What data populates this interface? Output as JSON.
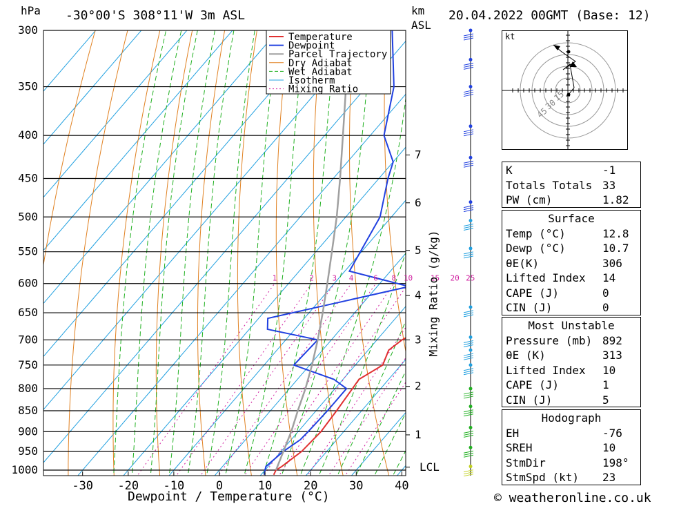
{
  "header": {
    "pressure_unit": "hPa",
    "location": "-30°00'S  308°11'W  3m  ASL",
    "height_unit_km": "km",
    "height_unit_asl": "ASL",
    "datetime": "20.04.2022  00GMT  (Base: 12)"
  },
  "hodograph": {
    "unit": "kt",
    "ring_labels": [
      "15",
      "30",
      "45"
    ]
  },
  "indices": [
    {
      "label": "K",
      "value": "-1"
    },
    {
      "label": "Totals Totals",
      "value": "33"
    },
    {
      "label": "PW (cm)",
      "value": "1.82"
    }
  ],
  "surface": {
    "title": "Surface",
    "rows": [
      {
        "label": "Temp (°C)",
        "value": "12.8"
      },
      {
        "label": "Dewp (°C)",
        "value": "10.7"
      },
      {
        "label": "θE(K)",
        "value": "306"
      },
      {
        "label": "Lifted Index",
        "value": "14"
      },
      {
        "label": "CAPE (J)",
        "value": "0"
      },
      {
        "label": "CIN (J)",
        "value": "0"
      }
    ]
  },
  "most_unstable": {
    "title": "Most Unstable",
    "rows": [
      {
        "label": "Pressure (mb)",
        "value": "892"
      },
      {
        "label": "θE (K)",
        "value": "313"
      },
      {
        "label": "Lifted Index",
        "value": "10"
      },
      {
        "label": "CAPE (J)",
        "value": "1"
      },
      {
        "label": "CIN (J)",
        "value": "5"
      }
    ]
  },
  "hodograph_params": {
    "title": "Hodograph",
    "rows": [
      {
        "label": "EH",
        "value": "-76"
      },
      {
        "label": "SREH",
        "value": "10"
      },
      {
        "label": "StmDir",
        "value": "198°"
      },
      {
        "label": "StmSpd (kt)",
        "value": "23"
      }
    ]
  },
  "footer": "© weatheronline.co.uk",
  "chart_data": {
    "type": "line",
    "subtype": "skew-t log-p",
    "xlabel": "Dewpoint / Temperature (°C)",
    "ylabel": "hPa",
    "right_axis_label": "Mixing Ratio (g/kg)",
    "x_ticks": [
      -30,
      -20,
      -10,
      0,
      10,
      20,
      30,
      40
    ],
    "pressure_levels": [
      300,
      350,
      400,
      450,
      500,
      550,
      600,
      650,
      700,
      750,
      800,
      850,
      900,
      950,
      1000
    ],
    "height_km_ticks": [
      {
        "km": "1",
        "p": 908
      },
      {
        "km": "2",
        "p": 795
      },
      {
        "km": "3",
        "p": 700
      },
      {
        "km": "4",
        "p": 620
      },
      {
        "km": "5",
        "p": 548
      },
      {
        "km": "6",
        "p": 481
      },
      {
        "km": "7",
        "p": 422
      }
    ],
    "lcl": {
      "label": "LCL",
      "p": 992
    },
    "mixing_ratio_labels": [
      "1",
      "2",
      "3",
      "4",
      "6",
      "8",
      "10",
      "15",
      "20",
      "25"
    ],
    "legend": [
      "Temperature",
      "Dewpoint",
      "Parcel Trajectory",
      "Dry Adiabat",
      "Wet Adiabat",
      "Isotherm",
      "Mixing Ratio"
    ],
    "colors": {
      "temperature": "#e03030",
      "dewpoint": "#2040e0",
      "parcel": "#a0a0a0",
      "dry_adiabat": "#e08020",
      "wet_adiabat": "#20b020",
      "isotherm": "#20a0e0",
      "mixing_ratio": "#d020a0"
    },
    "series": [
      {
        "name": "Temperature",
        "points": [
          [
            1013,
            12.8
          ],
          [
            1000,
            12.4
          ],
          [
            990,
            13.0
          ],
          [
            950,
            14.5
          ],
          [
            900,
            15.0
          ],
          [
            850,
            14.5
          ],
          [
            800,
            13.8
          ],
          [
            780,
            13.5
          ],
          [
            750,
            16.0
          ],
          [
            720,
            14.5
          ],
          [
            700,
            15.5
          ],
          [
            675,
            18.5
          ],
          [
            650,
            17.5
          ],
          [
            620,
            15.5
          ],
          [
            600,
            15.0
          ],
          [
            580,
            13.8
          ],
          [
            550,
            10.5
          ],
          [
            500,
            5.0
          ],
          [
            450,
            -1.5
          ],
          [
            420,
            -5.5
          ],
          [
            400,
            -7.5
          ],
          [
            350,
            -15.0
          ],
          [
            300,
            -24.0
          ]
        ]
      },
      {
        "name": "Dewpoint",
        "points": [
          [
            1013,
            10.7
          ],
          [
            1000,
            10.0
          ],
          [
            990,
            9.5
          ],
          [
            950,
            10.5
          ],
          [
            920,
            12.0
          ],
          [
            900,
            12.2
          ],
          [
            850,
            12.5
          ],
          [
            800,
            12.5
          ],
          [
            780,
            8.0
          ],
          [
            750,
            -3.5
          ],
          [
            700,
            -3.0
          ],
          [
            680,
            -16.0
          ],
          [
            660,
            -18.0
          ],
          [
            605,
            7.0
          ],
          [
            580,
            -9.0
          ],
          [
            500,
            -12.5
          ],
          [
            450,
            -18.0
          ],
          [
            430,
            -20.0
          ],
          [
            400,
            -27.0
          ],
          [
            350,
            -34.0
          ],
          [
            300,
            -45.0
          ]
        ]
      },
      {
        "name": "Parcel Trajectory",
        "points": [
          [
            1000,
            12.4
          ],
          [
            950,
            10.5
          ],
          [
            900,
            8.5
          ],
          [
            850,
            6.0
          ],
          [
            800,
            3.5
          ],
          [
            750,
            0.5
          ],
          [
            700,
            -3.0
          ],
          [
            650,
            -7.0
          ],
          [
            600,
            -11.5
          ],
          [
            550,
            -16.5
          ],
          [
            500,
            -22.0
          ],
          [
            450,
            -28.5
          ],
          [
            400,
            -36.0
          ],
          [
            350,
            -44.5
          ],
          [
            300,
            -54.0
          ]
        ]
      }
    ],
    "wind_markers_hpa": [
      300,
      325,
      350,
      390,
      425,
      480,
      505,
      545,
      640,
      695,
      720,
      750,
      800,
      840,
      890,
      940,
      990
    ]
  }
}
